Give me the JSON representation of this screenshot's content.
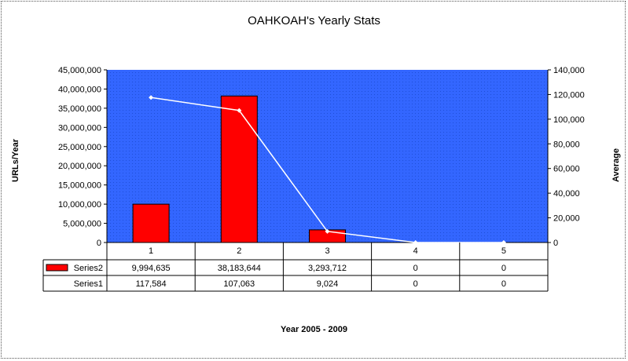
{
  "chart_data": {
    "type": "bar",
    "title": "OAHKOAH's Yearly Stats",
    "xlabel": "Year 2005 - 2009",
    "ylabel": "URLs/Year",
    "ylabel_right": "Average",
    "categories": [
      "1",
      "2",
      "3",
      "4",
      "5"
    ],
    "y_ticks": [
      "0",
      "5,000,000",
      "10,000,000",
      "15,000,000",
      "20,000,000",
      "25,000,000",
      "30,000,000",
      "35,000,000",
      "40,000,000",
      "45,000,000"
    ],
    "y2_ticks": [
      "0",
      "20,000",
      "40,000",
      "60,000",
      "80,000",
      "100,000",
      "120,000",
      "140,000"
    ],
    "ylim": [
      0,
      45000000
    ],
    "y2lim": [
      0,
      140000
    ],
    "plot_background": "#3366ff",
    "series": [
      {
        "name": "Series2",
        "type": "bar",
        "axis": "left",
        "color": "#ff0000",
        "values": [
          9994635,
          38183644,
          3293712,
          0,
          0
        ],
        "labels": [
          "9,994,635",
          "38,183,644",
          "3,293,712",
          "0",
          "0"
        ]
      },
      {
        "name": "Series1",
        "type": "line",
        "axis": "right",
        "color": "#ffffff",
        "values": [
          117584,
          107063,
          9024,
          0,
          0
        ],
        "labels": [
          "117,584",
          "107,063",
          "9,024",
          "0",
          "0"
        ]
      }
    ]
  }
}
